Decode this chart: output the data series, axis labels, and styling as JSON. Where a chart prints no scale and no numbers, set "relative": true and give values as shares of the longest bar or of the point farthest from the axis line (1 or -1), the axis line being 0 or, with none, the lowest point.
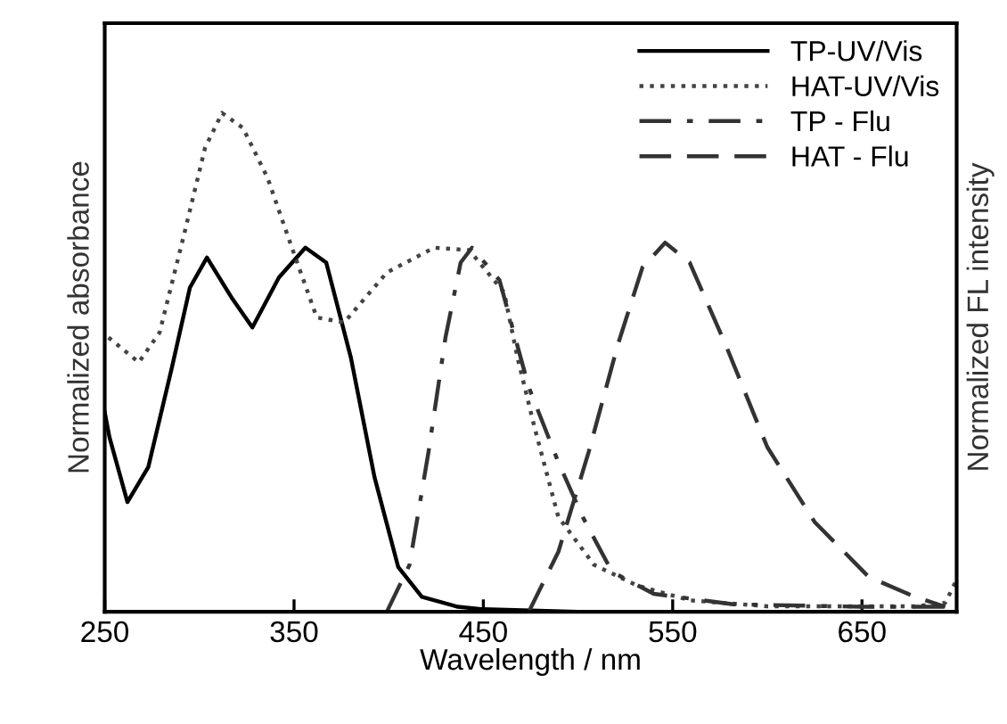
{
  "chart_data": {
    "type": "line",
    "relative": true,
    "xlabel": "Wavelength / nm",
    "ylabel": "Normalized absorbance",
    "y2label": "Normalized FL intensity",
    "xlim": [
      250,
      700
    ],
    "xticks": [
      250,
      350,
      450,
      550,
      650
    ],
    "legend": "top right",
    "grid": false,
    "series": [
      {
        "name": "TP-UV/Vis",
        "color": "#000000",
        "line_style": "solid",
        "x": [
          250,
          252.5,
          262,
          273,
          285.5,
          295,
          304,
          317,
          328,
          342,
          356,
          367,
          380,
          392.5,
          405,
          417.5,
          436.5,
          450,
          500,
          600,
          700
        ],
        "values": [
          0.4,
          0.35,
          0.22,
          0.29,
          0.49,
          0.65,
          0.71,
          0.63,
          0.57,
          0.67,
          0.73,
          0.7,
          0.51,
          0.27,
          0.09,
          0.03,
          0.01,
          0.005,
          0,
          0,
          0
        ]
      },
      {
        "name": "HAT-UV/Vis",
        "color": "#444444",
        "line_style": "dotted",
        "x": [
          252,
          268,
          279,
          291.5,
          303,
          312,
          323,
          336,
          347,
          362,
          376.5,
          399,
          424,
          442.5,
          461,
          468,
          477,
          489.6,
          508.5,
          531,
          559,
          600,
          647,
          678,
          694,
          700
        ],
        "values": [
          0.55,
          0.5,
          0.56,
          0.75,
          0.93,
          1.0,
          0.97,
          0.87,
          0.75,
          0.59,
          0.58,
          0.68,
          0.73,
          0.725,
          0.64,
          0.51,
          0.37,
          0.19,
          0.094,
          0.053,
          0.023,
          0.011,
          0.011,
          0.011,
          0.018,
          0.064
        ]
      },
      {
        "name": "TP - Flu",
        "color": "#333333",
        "line_style": "dashdot",
        "x": [
          399,
          411,
          421,
          430,
          438,
          444,
          458.5,
          474,
          489.6,
          502.5,
          518,
          540,
          582,
          650,
          700
        ],
        "values": [
          0,
          0.094,
          0.32,
          0.55,
          0.7,
          0.73,
          0.665,
          0.45,
          0.3,
          0.19,
          0.08,
          0.036,
          0.015,
          0.01,
          0.01
        ]
      },
      {
        "name": "HAT - Flu",
        "color": "#333333",
        "line_style": "dashed",
        "x": [
          474,
          489.6,
          505.6,
          521,
          534,
          546,
          559,
          578,
          600,
          625,
          653.5,
          678,
          694
        ],
        "values": [
          0,
          0.12,
          0.32,
          0.535,
          0.69,
          0.74,
          0.7,
          0.535,
          0.33,
          0.18,
          0.07,
          0.03,
          0.01
        ]
      }
    ]
  }
}
